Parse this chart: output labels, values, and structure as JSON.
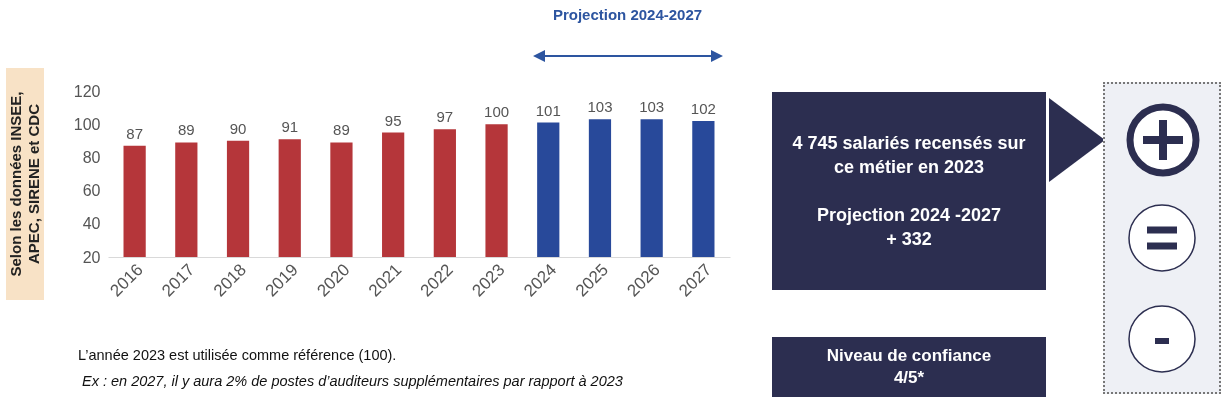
{
  "chart_data": {
    "type": "bar",
    "ylabel": "Selon les  données INSEE, APEC, SIRENE et CDC",
    "categories": [
      "2016",
      "2017",
      "2018",
      "2019",
      "2020",
      "2021",
      "2022",
      "2023",
      "2024",
      "2025",
      "2026",
      "2027"
    ],
    "values": [
      87,
      89,
      90,
      91,
      89,
      95,
      97,
      100,
      101,
      103,
      103,
      102
    ],
    "colors": [
      "#b5363a",
      "#b5363a",
      "#b5363a",
      "#b5363a",
      "#b5363a",
      "#b5363a",
      "#b5363a",
      "#b5363a",
      "#28499a",
      "#28499a",
      "#28499a",
      "#28499a"
    ],
    "ylim": [
      20,
      120
    ],
    "yticks": [
      20,
      40,
      60,
      80,
      100,
      120
    ],
    "data_labels": true,
    "annotations": [
      "Projection 2024-2027",
      "4 745 salariés recensés sur ce métier en 2023",
      "Projection 2024 -2027",
      "+ 332",
      "Niveau de confiance",
      "4/5*",
      "L’année 2023 est utilisée comme référence (100).",
      "Ex : en 2027, il y aura 2% de postes d’auditeurs supplémentaires par rapport à 2023"
    ]
  }
}
